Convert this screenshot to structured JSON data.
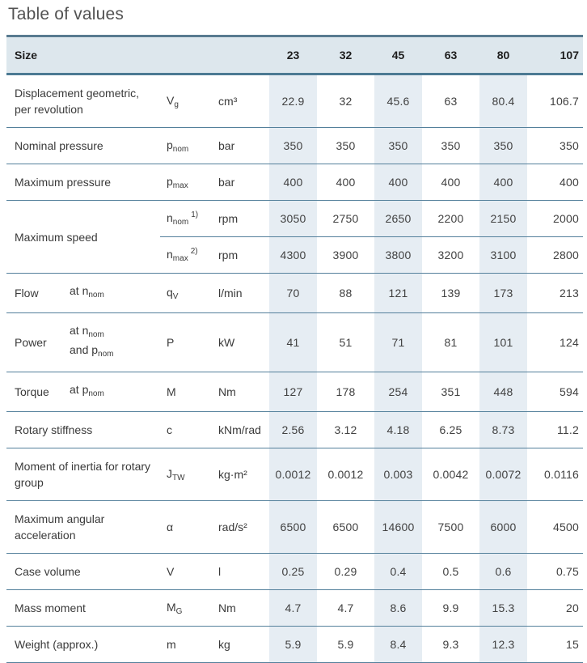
{
  "page": {
    "title": "Table of values"
  },
  "colors": {
    "header_bg": "#dde7ed",
    "shaded_column_bg": "#e6edf3",
    "header_top_border": "#587b90",
    "header_bottom_border": "#4c7a93",
    "row_divider": "#54809b",
    "title_text": "#525252"
  },
  "table": {
    "header": {
      "label": "Size",
      "sizes": [
        "23",
        "32",
        "45",
        "63",
        "80",
        "107"
      ]
    },
    "shaded_columns": [
      0,
      2,
      4
    ],
    "rows": [
      {
        "label": "Displacement geometric, per revolution",
        "symbol": {
          "t": "V",
          "s": "g"
        },
        "unit": "cm³",
        "values": [
          "22.9",
          "32",
          "45.6",
          "63",
          "80.4",
          "106.7"
        ]
      },
      {
        "label": "Nominal pressure",
        "symbol": {
          "t": "p",
          "s": "nom"
        },
        "unit": "bar",
        "values": [
          "350",
          "350",
          "350",
          "350",
          "350",
          "350"
        ]
      },
      {
        "label": "Maximum pressure",
        "symbol": {
          "t": "p",
          "s": "max"
        },
        "unit": "bar",
        "values": [
          "400",
          "400",
          "400",
          "400",
          "400",
          "400"
        ]
      },
      {
        "label": "Maximum speed",
        "subrows": [
          {
            "symbol": {
              "t": "n",
              "s": "nom",
              "p": "1)"
            },
            "unit": "rpm",
            "values": [
              "3050",
              "2750",
              "2650",
              "2200",
              "2150",
              "2000"
            ]
          },
          {
            "symbol": {
              "t": "n",
              "s": "max",
              "p": "2)"
            },
            "unit": "rpm",
            "values": [
              "4300",
              "3900",
              "3800",
              "3200",
              "3100",
              "2800"
            ]
          }
        ]
      },
      {
        "label": "Flow",
        "condition": [
          {
            "t": "at n",
            "s": "nom"
          }
        ],
        "symbol": {
          "t": "q",
          "s": "V"
        },
        "unit": "l/min",
        "values": [
          "70",
          "88",
          "121",
          "139",
          "173",
          "213"
        ]
      },
      {
        "label": "Power",
        "condition": [
          {
            "t": "at n",
            "s": "nom"
          },
          {
            "t": "and p",
            "s": "nom"
          }
        ],
        "symbol": {
          "t": "P"
        },
        "unit": "kW",
        "values": [
          "41",
          "51",
          "71",
          "81",
          "101",
          "124"
        ]
      },
      {
        "label": "Torque",
        "condition": [
          {
            "t": "at p",
            "s": "nom"
          }
        ],
        "symbol": {
          "t": "M"
        },
        "unit": "Nm",
        "values": [
          "127",
          "178",
          "254",
          "351",
          "448",
          "594"
        ]
      },
      {
        "label": "Rotary stiffness",
        "symbol": {
          "t": "c"
        },
        "unit": "kNm/rad",
        "values": [
          "2.56",
          "3.12",
          "4.18",
          "6.25",
          "8.73",
          "11.2"
        ]
      },
      {
        "label": "Moment of inertia for rotary group",
        "symbol": {
          "t": "J",
          "s": "TW"
        },
        "unit": "kg·m²",
        "values": [
          "0.0012",
          "0.0012",
          "0.003",
          "0.0042",
          "0.0072",
          "0.0116"
        ]
      },
      {
        "label": "Maximum angular acceleration",
        "symbol": {
          "t": "α"
        },
        "unit": "rad/s²",
        "values": [
          "6500",
          "6500",
          "14600",
          "7500",
          "6000",
          "4500"
        ]
      },
      {
        "label": "Case volume",
        "symbol": {
          "t": "V"
        },
        "unit": "l",
        "values": [
          "0.25",
          "0.29",
          "0.4",
          "0.5",
          "0.6",
          "0.75"
        ]
      },
      {
        "label": "Mass moment",
        "symbol": {
          "t": "M",
          "s": "G"
        },
        "unit": "Nm",
        "values": [
          "4.7",
          "4.7",
          "8.6",
          "9.9",
          "15.3",
          "20"
        ]
      },
      {
        "label": "Weight (approx.)",
        "symbol": {
          "t": "m"
        },
        "unit": "kg",
        "values": [
          "5.9",
          "5.9",
          "8.4",
          "9.3",
          "12.3",
          "15"
        ]
      }
    ]
  }
}
